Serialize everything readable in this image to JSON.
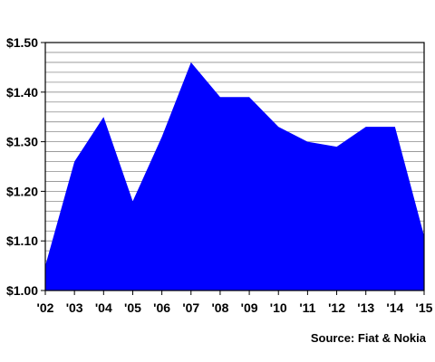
{
  "chart_data": {
    "type": "area",
    "x": [
      "'02",
      "'03",
      "'04",
      "'05",
      "'06",
      "'07",
      "'08",
      "'09",
      "'10",
      "'11",
      "'12",
      "'13",
      "'14",
      "'15"
    ],
    "series": [
      {
        "values": [
          1.05,
          1.26,
          1.35,
          1.18,
          1.31,
          1.46,
          1.39,
          1.39,
          1.33,
          1.3,
          1.29,
          1.33,
          1.33,
          1.11
        ]
      }
    ],
    "ylim": [
      1.0,
      1.5
    ],
    "y_ticks": [
      "$1.00",
      "$1.10",
      "$1.20",
      "$1.30",
      "$1.40",
      "$1.50"
    ],
    "y_tick_values": [
      1.0,
      1.1,
      1.2,
      1.3,
      1.4,
      1.5
    ],
    "y_minor_step": 0.02,
    "grid": true,
    "fill_color": "#0000FF",
    "title": "",
    "xlabel": "",
    "ylabel": ""
  },
  "source_note": "Source: Fiat & Nokia"
}
